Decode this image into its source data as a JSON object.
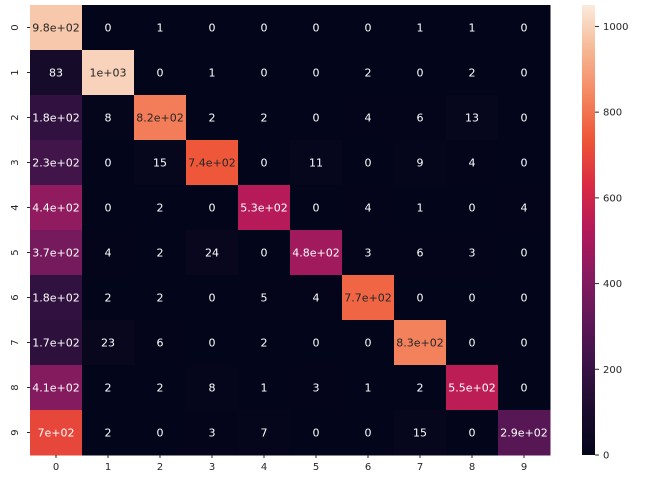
{
  "chart_data": {
    "type": "heatmap",
    "colormap": "rocket",
    "x_tick_labels": [
      "0",
      "1",
      "2",
      "3",
      "4",
      "5",
      "6",
      "7",
      "8",
      "9"
    ],
    "y_tick_labels": [
      "0",
      "1",
      "2",
      "3",
      "4",
      "5",
      "6",
      "7",
      "8",
      "9"
    ],
    "values": [
      [
        980,
        0,
        1,
        0,
        0,
        0,
        0,
        1,
        1,
        0
      ],
      [
        83,
        1000,
        0,
        1,
        0,
        0,
        2,
        0,
        2,
        0
      ],
      [
        180,
        8,
        820,
        2,
        2,
        0,
        4,
        6,
        13,
        0
      ],
      [
        230,
        0,
        15,
        740,
        0,
        11,
        0,
        9,
        4,
        0
      ],
      [
        440,
        0,
        2,
        0,
        530,
        0,
        4,
        1,
        0,
        4
      ],
      [
        370,
        4,
        2,
        24,
        0,
        480,
        3,
        6,
        3,
        0
      ],
      [
        180,
        2,
        2,
        0,
        5,
        4,
        770,
        0,
        0,
        0
      ],
      [
        170,
        23,
        6,
        0,
        2,
        0,
        0,
        830,
        0,
        0
      ],
      [
        410,
        2,
        2,
        8,
        1,
        3,
        1,
        2,
        550,
        0
      ],
      [
        700,
        2,
        0,
        3,
        7,
        0,
        0,
        15,
        0,
        290
      ]
    ],
    "annotations": [
      [
        "9.8e+02",
        "0",
        "1",
        "0",
        "0",
        "0",
        "0",
        "1",
        "1",
        "0"
      ],
      [
        "83",
        "1e+03",
        "0",
        "1",
        "0",
        "0",
        "2",
        "0",
        "2",
        "0"
      ],
      [
        "1.8e+02",
        "8",
        "8.2e+02",
        "2",
        "2",
        "0",
        "4",
        "6",
        "13",
        "0"
      ],
      [
        "2.3e+02",
        "0",
        "15",
        "7.4e+02",
        "0",
        "11",
        "0",
        "9",
        "4",
        "0"
      ],
      [
        "4.4e+02",
        "0",
        "2",
        "0",
        "5.3e+02",
        "0",
        "4",
        "1",
        "0",
        "4"
      ],
      [
        "3.7e+02",
        "4",
        "2",
        "24",
        "0",
        "4.8e+02",
        "3",
        "6",
        "3",
        "0"
      ],
      [
        "1.8e+02",
        "2",
        "2",
        "0",
        "5",
        "4",
        "7.7e+02",
        "0",
        "0",
        "0"
      ],
      [
        "1.7e+02",
        "23",
        "6",
        "0",
        "2",
        "0",
        "0",
        "8.3e+02",
        "0",
        "0"
      ],
      [
        "4.1e+02",
        "2",
        "2",
        "8",
        "1",
        "3",
        "1",
        "2",
        "5.5e+02",
        "0"
      ],
      [
        "7e+02",
        "2",
        "0",
        "3",
        "7",
        "0",
        "0",
        "15",
        "0",
        "2.9e+02"
      ]
    ],
    "vmin": 0,
    "vmax": 1050,
    "colorbar_ticks": [
      0,
      200,
      400,
      600,
      800,
      1000
    ],
    "colorbar_tick_labels": [
      "0",
      "200",
      "400",
      "600",
      "800",
      "1000"
    ],
    "title": "",
    "xlabel": "",
    "ylabel": ""
  }
}
